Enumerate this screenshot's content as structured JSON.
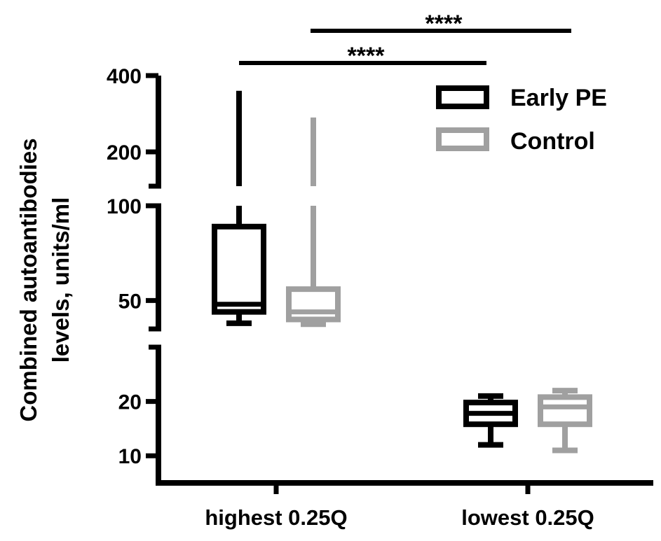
{
  "chart_data": {
    "type": "box",
    "ylabel_lines": [
      "Combined autoantibodies",
      "levels, units/ml"
    ],
    "y_axis": {
      "segments": [
        {
          "range": [
            5,
            30
          ],
          "ticks": [
            10,
            20
          ],
          "tick_labels": [
            "10",
            "20"
          ]
        },
        {
          "range": [
            35,
            100
          ],
          "ticks": [
            50,
            100
          ],
          "tick_labels": [
            "50",
            "100"
          ]
        },
        {
          "range": [
            110,
            400
          ],
          "ticks": [
            200,
            400
          ],
          "tick_labels": [
            "200",
            "400"
          ]
        }
      ]
    },
    "categories": [
      "highest 0.25Q",
      "lowest 0.25Q"
    ],
    "series": [
      {
        "name": "Early PE",
        "color": "#000000",
        "boxes": [
          {
            "min": 38,
            "q1": 44,
            "median": 48,
            "q3": 89,
            "max": 360
          },
          {
            "min": 12,
            "q1": 15.8,
            "median": 17.8,
            "q3": 19.8,
            "max": 21
          }
        ]
      },
      {
        "name": "Control",
        "color": "#a0a0a0",
        "boxes": [
          {
            "min": 37.5,
            "q1": 40,
            "median": 44,
            "q3": 56,
            "max": 290
          },
          {
            "min": 11,
            "q1": 15.8,
            "median": 19,
            "q3": 20.8,
            "max": 22
          }
        ]
      }
    ],
    "significance": [
      {
        "label": "****"
      },
      {
        "label": "****"
      }
    ],
    "legend_position": "top-right",
    "grid": false
  }
}
